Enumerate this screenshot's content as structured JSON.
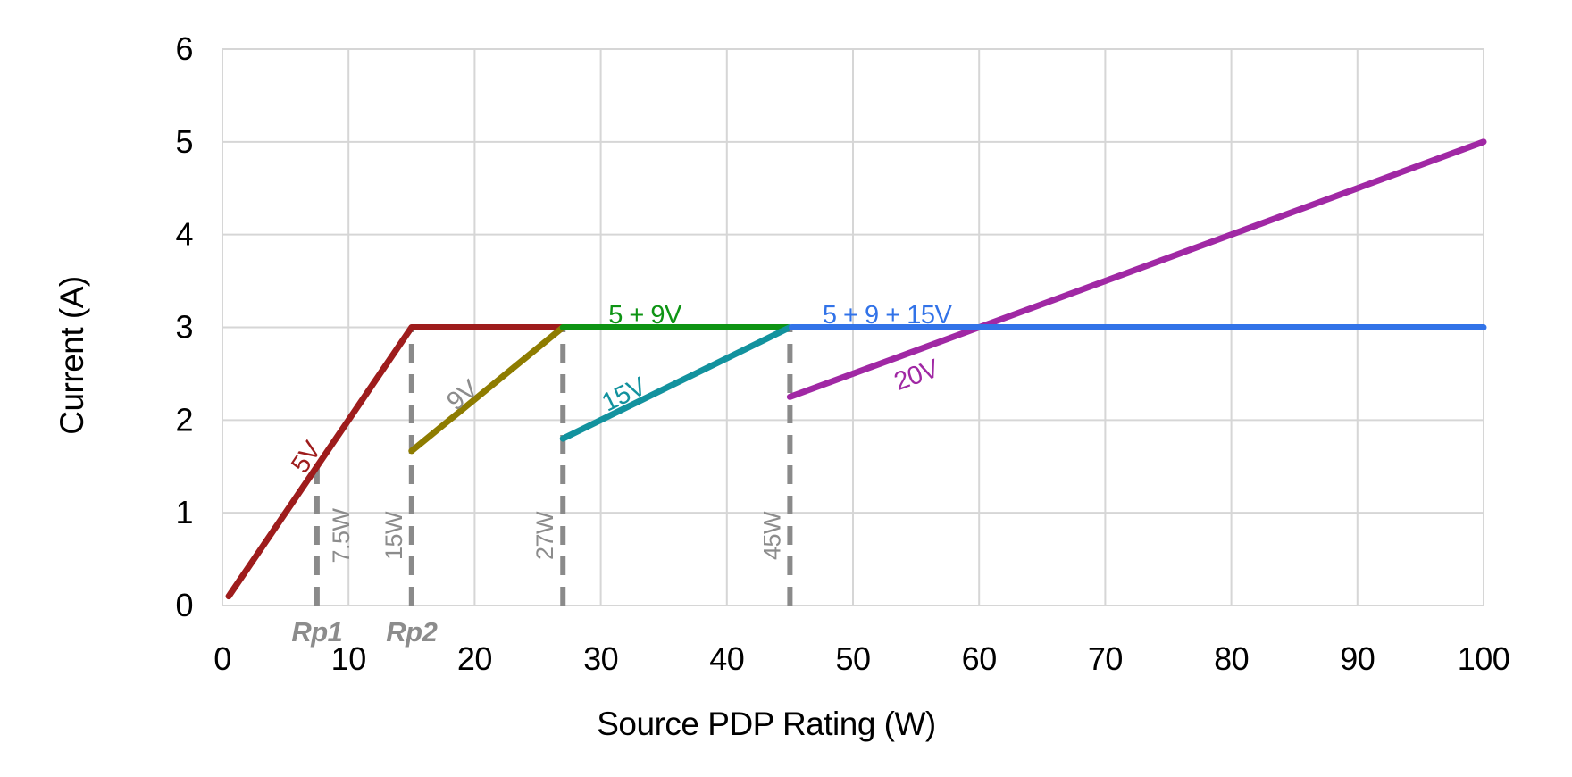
{
  "chart_data": {
    "type": "line",
    "title": "",
    "xlabel": "Source PDP Rating (W)",
    "ylabel": "Current (A)",
    "xlim": [
      0,
      100
    ],
    "ylim": [
      0,
      6
    ],
    "xticks": [
      0,
      10,
      20,
      30,
      40,
      50,
      60,
      70,
      80,
      90,
      100
    ],
    "yticks": [
      0,
      1,
      2,
      3,
      4,
      5,
      6
    ],
    "grid": true,
    "legend_position": "none",
    "series": [
      {
        "name": "5V",
        "color": "#9E1C1C",
        "points": [
          [
            0.5,
            0.1
          ],
          [
            15,
            3
          ],
          [
            27,
            3
          ]
        ],
        "label": {
          "text": "5V",
          "x": 6.6,
          "y": 1.6,
          "rotation": -56,
          "color": "#9E1C1C"
        }
      },
      {
        "name": "9V",
        "color": "#8E7C00",
        "points": [
          [
            15,
            1.667
          ],
          [
            27,
            3
          ]
        ],
        "label": {
          "text": "9V",
          "x": 19.0,
          "y": 2.27,
          "rotation": -39,
          "color": "#8C8C8C"
        }
      },
      {
        "name": "5 + 9V",
        "color": "#0E9414",
        "points": [
          [
            27,
            3
          ],
          [
            44.85,
            3
          ]
        ],
        "label": {
          "text": "5 + 9V",
          "x": 33.5,
          "y": 3.14,
          "rotation": 0,
          "color": "#0E9414"
        }
      },
      {
        "name": "15V",
        "color": "#12929E",
        "points": [
          [
            27,
            1.8
          ],
          [
            45,
            3
          ]
        ],
        "label": {
          "text": "15V",
          "x": 31.8,
          "y": 2.28,
          "rotation": -26,
          "color": "#12929E"
        }
      },
      {
        "name": "20V",
        "color": "#A028A4",
        "points": [
          [
            45,
            2.25
          ],
          [
            100,
            5
          ]
        ],
        "label": {
          "text": "20V",
          "x": 55.0,
          "y": 2.49,
          "rotation": -20,
          "color": "#A028A4"
        }
      },
      {
        "name": "5 + 9 + 15V",
        "color": "#3273E8",
        "points": [
          [
            45.15,
            3
          ],
          [
            100,
            3
          ]
        ],
        "label": {
          "text": "5 + 9 + 15V",
          "x": 52.7,
          "y": 3.14,
          "rotation": 0,
          "color": "#3273E8"
        }
      }
    ],
    "thresholds": [
      {
        "text": "7.5W",
        "x": 7.5,
        "y_top": 1.5,
        "label_side": "right",
        "rp": "Rp1"
      },
      {
        "text": "15W",
        "x": 15,
        "y_top": 3,
        "label_side": "left",
        "rp": "Rp2"
      },
      {
        "text": "27W",
        "x": 27,
        "y_top": 3,
        "label_side": "left",
        "rp": ""
      },
      {
        "text": "45W",
        "x": 45,
        "y_top": 3,
        "label_side": "left",
        "rp": ""
      }
    ],
    "styles": {
      "gridline_color": "#D6D6D6",
      "dash_color": "#8A8A8A",
      "series_width": 7,
      "dash_width": 6,
      "dash_pattern": "21 13"
    }
  }
}
